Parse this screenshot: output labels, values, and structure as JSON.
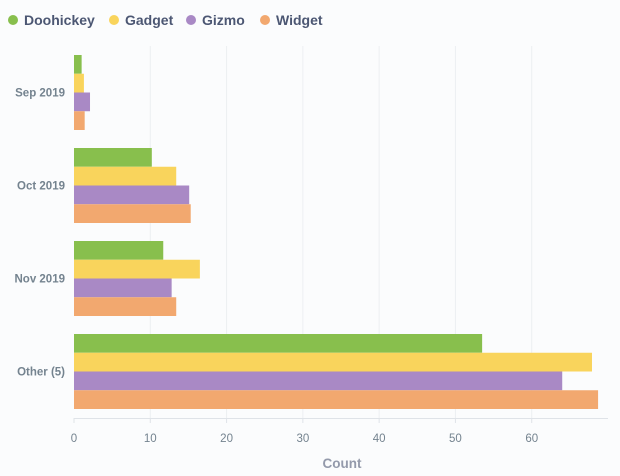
{
  "chart_data": {
    "type": "bar",
    "orientation": "horizontal",
    "categories": [
      "Sep 2019",
      "Oct 2019",
      "Nov 2019",
      "Other (5)"
    ],
    "series": [
      {
        "name": "Doohickey",
        "color": "#88bf4d",
        "values": [
          1,
          10.2,
          11.7,
          53.5
        ]
      },
      {
        "name": "Gadget",
        "color": "#f9d45c",
        "values": [
          1.3,
          13.4,
          16.5,
          67.9
        ]
      },
      {
        "name": "Gizmo",
        "color": "#a989c5",
        "values": [
          2.1,
          15.1,
          12.8,
          64
        ]
      },
      {
        "name": "Widget",
        "color": "#f2a86f",
        "values": [
          1.4,
          15.3,
          13.4,
          68.7
        ]
      }
    ],
    "xlabel": "Count",
    "ylabel": "",
    "xlim": [
      0,
      70
    ],
    "xticks": [
      0,
      10,
      20,
      30,
      40,
      50,
      60
    ],
    "grid": true,
    "legend": "top-left"
  }
}
